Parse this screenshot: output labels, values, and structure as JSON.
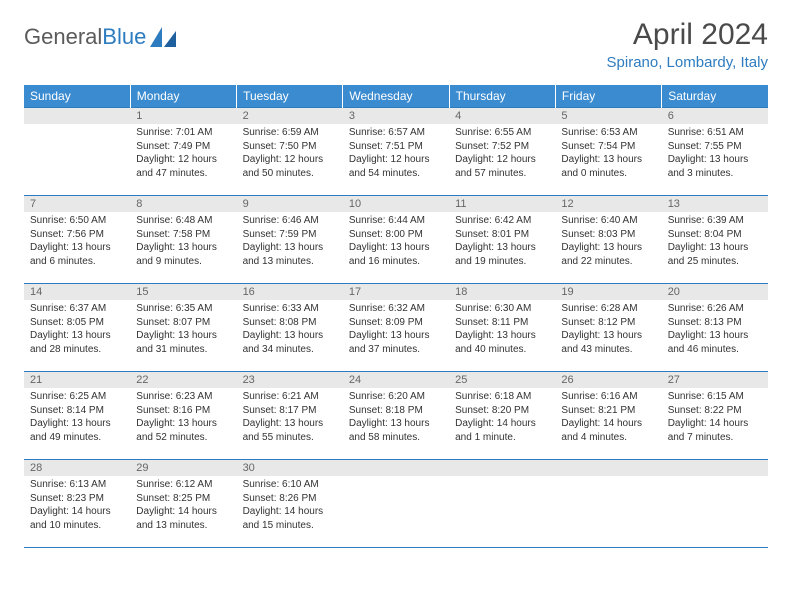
{
  "brand": {
    "part1": "General",
    "part2": "Blue"
  },
  "title": "April 2024",
  "location": "Spirano, Lombardy, Italy",
  "colors": {
    "header_bg": "#3a8bd0",
    "accent": "#2e7cc0",
    "daynum_bg": "#e8e8e8",
    "text": "#333333"
  },
  "weekdays": [
    "Sunday",
    "Monday",
    "Tuesday",
    "Wednesday",
    "Thursday",
    "Friday",
    "Saturday"
  ],
  "start_offset": 1,
  "days": [
    {
      "n": 1,
      "sr": "7:01 AM",
      "ss": "7:49 PM",
      "dl": "12 hours and 47 minutes."
    },
    {
      "n": 2,
      "sr": "6:59 AM",
      "ss": "7:50 PM",
      "dl": "12 hours and 50 minutes."
    },
    {
      "n": 3,
      "sr": "6:57 AM",
      "ss": "7:51 PM",
      "dl": "12 hours and 54 minutes."
    },
    {
      "n": 4,
      "sr": "6:55 AM",
      "ss": "7:52 PM",
      "dl": "12 hours and 57 minutes."
    },
    {
      "n": 5,
      "sr": "6:53 AM",
      "ss": "7:54 PM",
      "dl": "13 hours and 0 minutes."
    },
    {
      "n": 6,
      "sr": "6:51 AM",
      "ss": "7:55 PM",
      "dl": "13 hours and 3 minutes."
    },
    {
      "n": 7,
      "sr": "6:50 AM",
      "ss": "7:56 PM",
      "dl": "13 hours and 6 minutes."
    },
    {
      "n": 8,
      "sr": "6:48 AM",
      "ss": "7:58 PM",
      "dl": "13 hours and 9 minutes."
    },
    {
      "n": 9,
      "sr": "6:46 AM",
      "ss": "7:59 PM",
      "dl": "13 hours and 13 minutes."
    },
    {
      "n": 10,
      "sr": "6:44 AM",
      "ss": "8:00 PM",
      "dl": "13 hours and 16 minutes."
    },
    {
      "n": 11,
      "sr": "6:42 AM",
      "ss": "8:01 PM",
      "dl": "13 hours and 19 minutes."
    },
    {
      "n": 12,
      "sr": "6:40 AM",
      "ss": "8:03 PM",
      "dl": "13 hours and 22 minutes."
    },
    {
      "n": 13,
      "sr": "6:39 AM",
      "ss": "8:04 PM",
      "dl": "13 hours and 25 minutes."
    },
    {
      "n": 14,
      "sr": "6:37 AM",
      "ss": "8:05 PM",
      "dl": "13 hours and 28 minutes."
    },
    {
      "n": 15,
      "sr": "6:35 AM",
      "ss": "8:07 PM",
      "dl": "13 hours and 31 minutes."
    },
    {
      "n": 16,
      "sr": "6:33 AM",
      "ss": "8:08 PM",
      "dl": "13 hours and 34 minutes."
    },
    {
      "n": 17,
      "sr": "6:32 AM",
      "ss": "8:09 PM",
      "dl": "13 hours and 37 minutes."
    },
    {
      "n": 18,
      "sr": "6:30 AM",
      "ss": "8:11 PM",
      "dl": "13 hours and 40 minutes."
    },
    {
      "n": 19,
      "sr": "6:28 AM",
      "ss": "8:12 PM",
      "dl": "13 hours and 43 minutes."
    },
    {
      "n": 20,
      "sr": "6:26 AM",
      "ss": "8:13 PM",
      "dl": "13 hours and 46 minutes."
    },
    {
      "n": 21,
      "sr": "6:25 AM",
      "ss": "8:14 PM",
      "dl": "13 hours and 49 minutes."
    },
    {
      "n": 22,
      "sr": "6:23 AM",
      "ss": "8:16 PM",
      "dl": "13 hours and 52 minutes."
    },
    {
      "n": 23,
      "sr": "6:21 AM",
      "ss": "8:17 PM",
      "dl": "13 hours and 55 minutes."
    },
    {
      "n": 24,
      "sr": "6:20 AM",
      "ss": "8:18 PM",
      "dl": "13 hours and 58 minutes."
    },
    {
      "n": 25,
      "sr": "6:18 AM",
      "ss": "8:20 PM",
      "dl": "14 hours and 1 minute."
    },
    {
      "n": 26,
      "sr": "6:16 AM",
      "ss": "8:21 PM",
      "dl": "14 hours and 4 minutes."
    },
    {
      "n": 27,
      "sr": "6:15 AM",
      "ss": "8:22 PM",
      "dl": "14 hours and 7 minutes."
    },
    {
      "n": 28,
      "sr": "6:13 AM",
      "ss": "8:23 PM",
      "dl": "14 hours and 10 minutes."
    },
    {
      "n": 29,
      "sr": "6:12 AM",
      "ss": "8:25 PM",
      "dl": "14 hours and 13 minutes."
    },
    {
      "n": 30,
      "sr": "6:10 AM",
      "ss": "8:26 PM",
      "dl": "14 hours and 15 minutes."
    }
  ],
  "labels": {
    "sunrise": "Sunrise:",
    "sunset": "Sunset:",
    "daylight": "Daylight:"
  }
}
